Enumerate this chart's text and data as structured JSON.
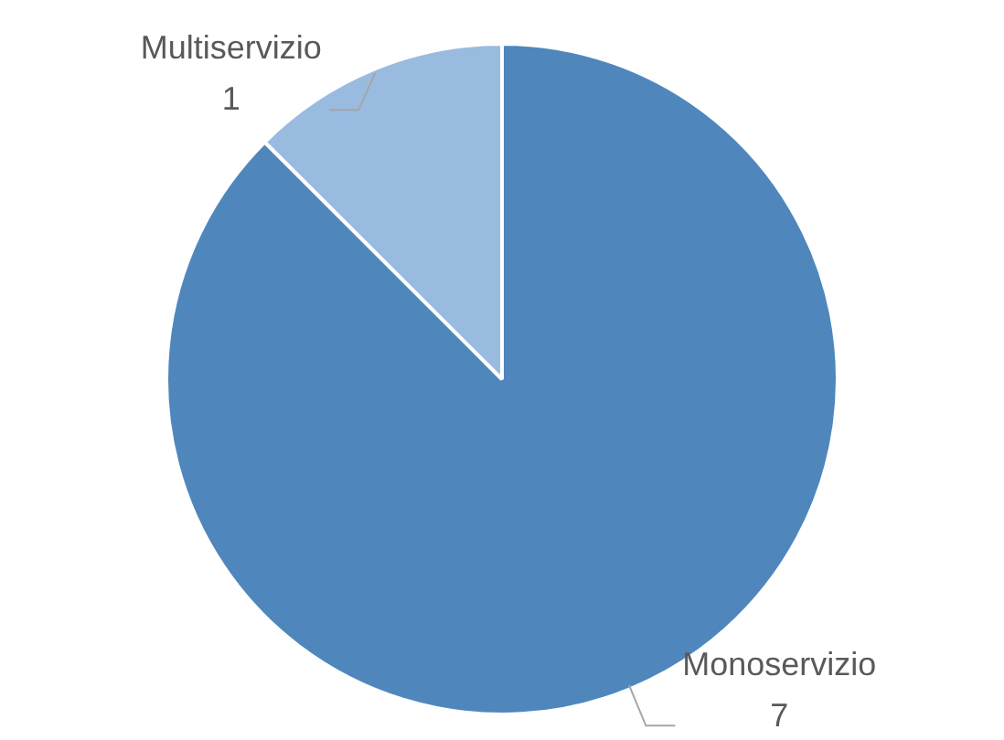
{
  "chart_data": {
    "type": "pie",
    "categories": [
      "Monoservizio",
      "Multiservizio"
    ],
    "values": [
      7,
      1
    ],
    "colors": [
      "#4f87bd",
      "#9abbe0"
    ],
    "data_labels": true,
    "legend": false
  }
}
